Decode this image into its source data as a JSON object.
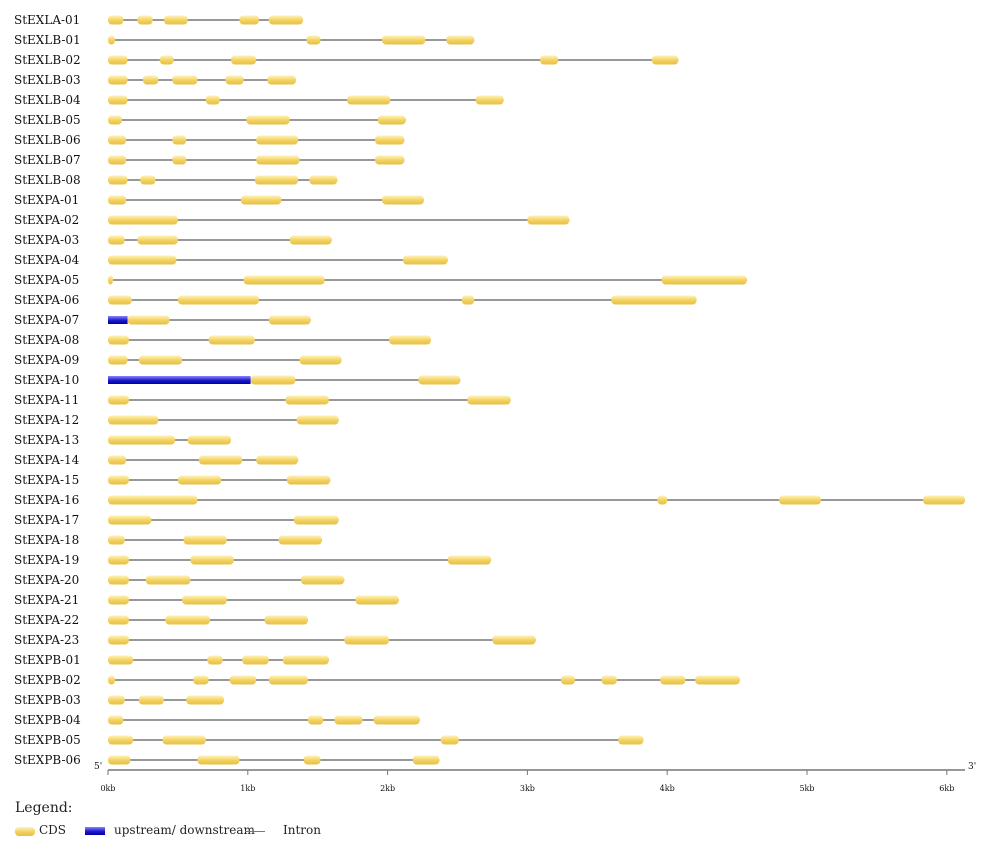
{
  "axis": {
    "five_prime": "5'",
    "three_prime": "3'",
    "ticks": [
      {
        "value": 0,
        "label": "0kb"
      },
      {
        "value": 1000,
        "label": "1kb"
      },
      {
        "value": 2000,
        "label": "2kb"
      },
      {
        "value": 3000,
        "label": "3kb"
      },
      {
        "value": 4000,
        "label": "4kb"
      },
      {
        "value": 5000,
        "label": "5kb"
      },
      {
        "value": 6000,
        "label": "6kb"
      }
    ],
    "max": 6130
  },
  "legend": {
    "title": "Legend:",
    "cds": "CDS",
    "upstream": "upstream/ downstream",
    "intron": "Intron"
  },
  "colors": {
    "cds_top": "#fff3b8",
    "cds_mid": "#f2d060",
    "cds_bottom": "#e8c040",
    "upstream_top": "#8888ff",
    "upstream_mid": "#1a1acc",
    "upstream_bottom": "#0000a0",
    "intron": "#777777"
  },
  "genes": [
    {
      "name": "StEXLA-01",
      "length": 1395,
      "cds": [
        [
          0,
          110
        ],
        [
          210,
          320
        ],
        [
          400,
          570
        ],
        [
          940,
          1080
        ],
        [
          1150,
          1395
        ]
      ],
      "upstream": []
    },
    {
      "name": "StEXLB-01",
      "length": 2620,
      "cds": [
        [
          0,
          50
        ],
        [
          1420,
          1520
        ],
        [
          1960,
          2270
        ],
        [
          2420,
          2620
        ]
      ],
      "upstream": []
    },
    {
      "name": "StEXLB-02",
      "length": 4080,
      "cds": [
        [
          0,
          140
        ],
        [
          370,
          470
        ],
        [
          880,
          1060
        ],
        [
          3090,
          3220
        ],
        [
          3890,
          4080
        ]
      ],
      "upstream": []
    },
    {
      "name": "StEXLB-03",
      "length": 1345,
      "cds": [
        [
          0,
          140
        ],
        [
          250,
          360
        ],
        [
          460,
          640
        ],
        [
          840,
          970
        ],
        [
          1140,
          1345
        ]
      ],
      "upstream": []
    },
    {
      "name": "StEXLB-04",
      "length": 2830,
      "cds": [
        [
          0,
          140
        ],
        [
          700,
          800
        ],
        [
          1710,
          2020
        ],
        [
          2630,
          2830
        ]
      ],
      "upstream": []
    },
    {
      "name": "StEXLB-05",
      "length": 2130,
      "cds": [
        [
          0,
          100
        ],
        [
          990,
          1300
        ],
        [
          1930,
          2130
        ]
      ],
      "upstream": []
    },
    {
      "name": "StEXLB-06",
      "length": 2120,
      "cds": [
        [
          0,
          130
        ],
        [
          460,
          560
        ],
        [
          1060,
          1360
        ],
        [
          1910,
          2120
        ]
      ],
      "upstream": []
    },
    {
      "name": "StEXLB-07",
      "length": 2120,
      "cds": [
        [
          0,
          130
        ],
        [
          460,
          560
        ],
        [
          1060,
          1370
        ],
        [
          1910,
          2120
        ]
      ],
      "upstream": []
    },
    {
      "name": "StEXLB-08",
      "length": 1640,
      "cds": [
        [
          0,
          140
        ],
        [
          230,
          340
        ],
        [
          1050,
          1360
        ],
        [
          1440,
          1640
        ]
      ],
      "upstream": []
    },
    {
      "name": "StEXPA-01",
      "length": 2260,
      "cds": [
        [
          0,
          130
        ],
        [
          950,
          1240
        ],
        [
          1960,
          2260
        ]
      ],
      "upstream": []
    },
    {
      "name": "StEXPA-02",
      "length": 3300,
      "cds": [
        [
          0,
          500
        ],
        [
          3000,
          3300
        ]
      ],
      "upstream": []
    },
    {
      "name": "StEXPA-03",
      "length": 1600,
      "cds": [
        [
          0,
          120
        ],
        [
          210,
          500
        ],
        [
          1300,
          1600
        ]
      ],
      "upstream": []
    },
    {
      "name": "StEXPA-04",
      "length": 2430,
      "cds": [
        [
          0,
          490
        ],
        [
          2110,
          2430
        ]
      ],
      "upstream": []
    },
    {
      "name": "StEXPA-05",
      "length": 4570,
      "cds": [
        [
          0,
          30
        ],
        [
          970,
          1550
        ],
        [
          3960,
          4570
        ]
      ],
      "upstream": []
    },
    {
      "name": "StEXPA-06",
      "length": 4210,
      "cds": [
        [
          0,
          170
        ],
        [
          500,
          1080
        ],
        [
          2530,
          2620
        ],
        [
          3600,
          4210
        ]
      ],
      "upstream": []
    },
    {
      "name": "StEXPA-07",
      "length": 1450,
      "cds": [
        [
          140,
          440
        ],
        [
          1150,
          1450
        ]
      ],
      "upstream": [
        [
          0,
          140
        ]
      ]
    },
    {
      "name": "StEXPA-08",
      "length": 2310,
      "cds": [
        [
          0,
          150
        ],
        [
          720,
          1050
        ],
        [
          2010,
          2310
        ]
      ],
      "upstream": []
    },
    {
      "name": "StEXPA-09",
      "length": 1670,
      "cds": [
        [
          0,
          140
        ],
        [
          220,
          530
        ],
        [
          1370,
          1670
        ]
      ],
      "upstream": []
    },
    {
      "name": "StEXPA-10",
      "length": 2520,
      "cds": [
        [
          1020,
          1340
        ],
        [
          2220,
          2520
        ]
      ],
      "upstream": [
        [
          0,
          1020
        ]
      ]
    },
    {
      "name": "StEXPA-11",
      "length": 2880,
      "cds": [
        [
          0,
          150
        ],
        [
          1270,
          1580
        ],
        [
          2570,
          2880
        ]
      ],
      "upstream": []
    },
    {
      "name": "StEXPA-12",
      "length": 1650,
      "cds": [
        [
          0,
          360
        ],
        [
          1350,
          1650
        ]
      ],
      "upstream": []
    },
    {
      "name": "StEXPA-13",
      "length": 880,
      "cds": [
        [
          0,
          480
        ],
        [
          570,
          880
        ]
      ],
      "upstream": []
    },
    {
      "name": "StEXPA-14",
      "length": 1360,
      "cds": [
        [
          0,
          130
        ],
        [
          650,
          960
        ],
        [
          1060,
          1360
        ]
      ],
      "upstream": []
    },
    {
      "name": "StEXPA-15",
      "length": 1590,
      "cds": [
        [
          0,
          150
        ],
        [
          500,
          810
        ],
        [
          1280,
          1590
        ]
      ],
      "upstream": []
    },
    {
      "name": "StEXPA-16",
      "length": 6130,
      "cds": [
        [
          0,
          640
        ],
        [
          3930,
          4000
        ],
        [
          4800,
          5100
        ],
        [
          5830,
          6130
        ]
      ],
      "upstream": []
    },
    {
      "name": "StEXPA-17",
      "length": 1650,
      "cds": [
        [
          0,
          310
        ],
        [
          1330,
          1650
        ]
      ],
      "upstream": []
    },
    {
      "name": "StEXPA-18",
      "length": 1530,
      "cds": [
        [
          0,
          120
        ],
        [
          540,
          850
        ],
        [
          1220,
          1530
        ]
      ],
      "upstream": []
    },
    {
      "name": "StEXPA-19",
      "length": 2740,
      "cds": [
        [
          0,
          150
        ],
        [
          590,
          900
        ],
        [
          2430,
          2740
        ]
      ],
      "upstream": []
    },
    {
      "name": "StEXPA-20",
      "length": 1690,
      "cds": [
        [
          0,
          150
        ],
        [
          270,
          590
        ],
        [
          1380,
          1690
        ]
      ],
      "upstream": []
    },
    {
      "name": "StEXPA-21",
      "length": 2080,
      "cds": [
        [
          0,
          150
        ],
        [
          530,
          850
        ],
        [
          1770,
          2080
        ]
      ],
      "upstream": []
    },
    {
      "name": "StEXPA-22",
      "length": 1430,
      "cds": [
        [
          0,
          150
        ],
        [
          410,
          730
        ],
        [
          1120,
          1430
        ]
      ],
      "upstream": []
    },
    {
      "name": "StEXPA-23",
      "length": 3060,
      "cds": [
        [
          0,
          150
        ],
        [
          1690,
          2010
        ],
        [
          2750,
          3060
        ]
      ],
      "upstream": []
    },
    {
      "name": "StEXPB-01",
      "length": 1580,
      "cds": [
        [
          0,
          180
        ],
        [
          710,
          820
        ],
        [
          960,
          1150
        ],
        [
          1250,
          1580
        ]
      ],
      "upstream": []
    },
    {
      "name": "StEXPB-02",
      "length": 4520,
      "cds": [
        [
          0,
          50
        ],
        [
          610,
          720
        ],
        [
          870,
          1060
        ],
        [
          1150,
          1430
        ],
        [
          3240,
          3340
        ],
        [
          3530,
          3640
        ],
        [
          3950,
          4130
        ],
        [
          4200,
          4520
        ]
      ],
      "upstream": []
    },
    {
      "name": "StEXPB-03",
      "length": 830,
      "cds": [
        [
          0,
          120
        ],
        [
          220,
          400
        ],
        [
          560,
          830
        ]
      ],
      "upstream": []
    },
    {
      "name": "StEXPB-04",
      "length": 2230,
      "cds": [
        [
          0,
          110
        ],
        [
          1430,
          1540
        ],
        [
          1620,
          1820
        ],
        [
          1900,
          2230
        ]
      ],
      "upstream": []
    },
    {
      "name": "StEXPB-05",
      "length": 3830,
      "cds": [
        [
          0,
          180
        ],
        [
          390,
          700
        ],
        [
          2380,
          2510
        ],
        [
          3650,
          3830
        ]
      ],
      "upstream": []
    },
    {
      "name": "StEXPB-06",
      "length": 2370,
      "cds": [
        [
          0,
          160
        ],
        [
          640,
          940
        ],
        [
          1400,
          1520
        ],
        [
          2180,
          2370
        ]
      ],
      "upstream": []
    }
  ]
}
